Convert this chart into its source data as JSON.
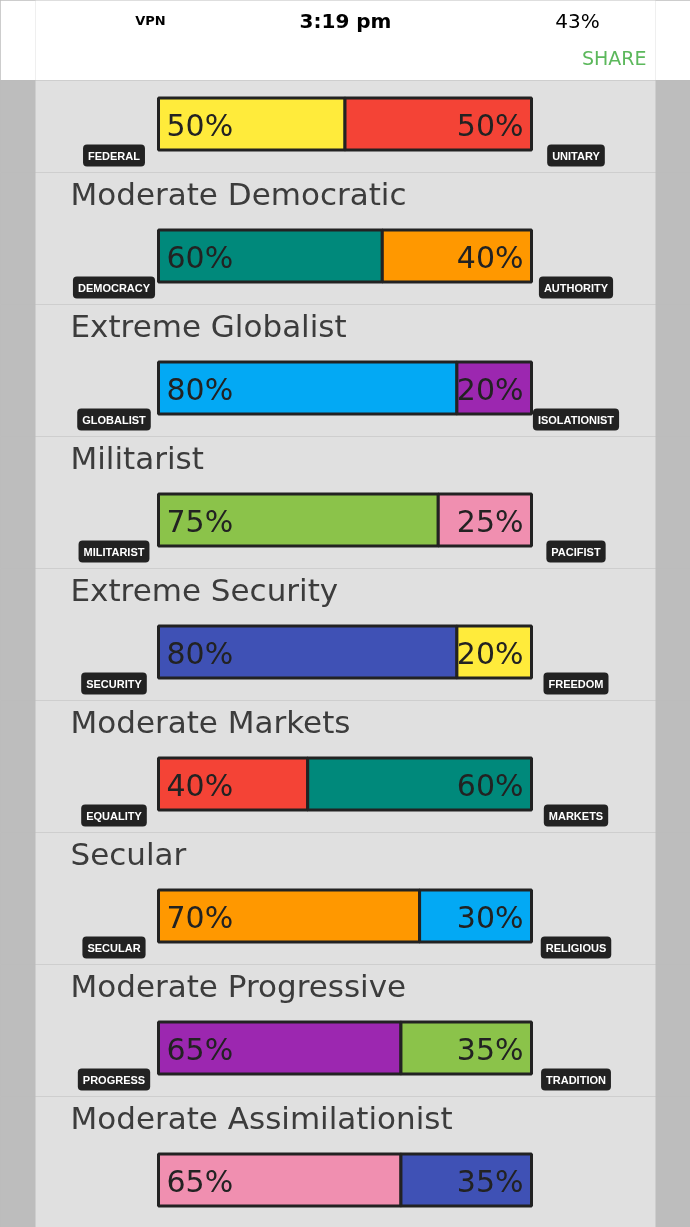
{
  "chart_data": [
    {
      "type": "bar",
      "orientation": "horizontal",
      "stacked": true,
      "categories": [
        null
      ],
      "annotations": [
        "VPN",
        "3:19 pm",
        "43%",
        "SHARE"
      ],
      "series": [
        {
          "name": "FEDERAL",
          "color": "#ffeb3b",
          "values": [
            50
          ],
          "value_labels": [
            "50%"
          ]
        },
        {
          "name": "UNITARY",
          "color": "#f44336",
          "values": [
            50
          ],
          "value_labels": [
            "50%"
          ]
        }
      ]
    },
    {
      "type": "bar",
      "orientation": "horizontal",
      "stacked": true,
      "title": "Moderate Democratic",
      "categories": [
        null
      ],
      "series": [
        {
          "name": "DEMOCRACY",
          "color": "#00897b",
          "values": [
            60
          ],
          "value_labels": [
            "60%"
          ]
        },
        {
          "name": "AUTHORITY",
          "color": "#ff9800",
          "values": [
            40
          ],
          "value_labels": [
            "40%"
          ]
        }
      ]
    },
    {
      "type": "bar",
      "orientation": "horizontal",
      "stacked": true,
      "title": "Extreme Globalist",
      "categories": [
        null
      ],
      "series": [
        {
          "name": "GLOBALIST",
          "color": "#03a9f4",
          "values": [
            80
          ],
          "value_labels": [
            "80%"
          ]
        },
        {
          "name": "ISOLATIONIST",
          "color": "#9c27b0",
          "values": [
            20
          ],
          "value_labels": [
            "20%"
          ]
        }
      ]
    },
    {
      "type": "bar",
      "orientation": "horizontal",
      "stacked": true,
      "title": "Militarist",
      "categories": [
        null
      ],
      "series": [
        {
          "name": "MILITARIST",
          "color": "#8bc34a",
          "values": [
            75
          ],
          "value_labels": [
            "75%"
          ]
        },
        {
          "name": "PACIFIST",
          "color": "#f08fb0",
          "values": [
            25
          ],
          "value_labels": [
            "25%"
          ]
        }
      ]
    },
    {
      "type": "bar",
      "orientation": "horizontal",
      "stacked": true,
      "title": "Extreme Security",
      "categories": [
        null
      ],
      "series": [
        {
          "name": "SECURITY",
          "color": "#3f51b5",
          "values": [
            80
          ],
          "value_labels": [
            "80%"
          ]
        },
        {
          "name": "FREEDOM",
          "color": "#ffeb3b",
          "values": [
            20
          ],
          "value_labels": [
            "20%"
          ]
        }
      ]
    },
    {
      "type": "bar",
      "orientation": "horizontal",
      "stacked": true,
      "title": "Moderate Markets",
      "categories": [
        null
      ],
      "series": [
        {
          "name": "EQUALITY",
          "color": "#f44336",
          "values": [
            40
          ],
          "value_labels": [
            "40%"
          ]
        },
        {
          "name": "MARKETS",
          "color": "#00897b",
          "values": [
            60
          ],
          "value_labels": [
            "60%"
          ]
        }
      ]
    },
    {
      "type": "bar",
      "orientation": "horizontal",
      "stacked": true,
      "title": "Secular",
      "categories": [
        null
      ],
      "series": [
        {
          "name": "SECULAR",
          "color": "#ff9800",
          "values": [
            70
          ],
          "value_labels": [
            "70%"
          ]
        },
        {
          "name": "RELIGIOUS",
          "color": "#03a9f4",
          "values": [
            30
          ],
          "value_labels": [
            "30%"
          ]
        }
      ]
    },
    {
      "type": "bar",
      "orientation": "horizontal",
      "stacked": true,
      "title": "Moderate Progressive",
      "categories": [
        null
      ],
      "series": [
        {
          "name": "PROGRESS",
          "color": "#9c27b0",
          "values": [
            65
          ],
          "value_labels": [
            "65%"
          ]
        },
        {
          "name": "TRADITION",
          "color": "#8bc34a",
          "values": [
            35
          ],
          "value_labels": [
            "35%"
          ]
        }
      ]
    },
    {
      "type": "bar",
      "orientation": "horizontal",
      "stacked": true,
      "title": "Moderate Assimilationist",
      "categories": [
        null
      ],
      "series": [
        {
          "color": "#f08fb0",
          "values": [
            65
          ],
          "value_labels": [
            "65%"
          ]
        },
        {
          "color": "#3f51b5",
          "values": [
            35
          ],
          "value_labels": [
            "35%"
          ]
        }
      ]
    }
  ]
}
